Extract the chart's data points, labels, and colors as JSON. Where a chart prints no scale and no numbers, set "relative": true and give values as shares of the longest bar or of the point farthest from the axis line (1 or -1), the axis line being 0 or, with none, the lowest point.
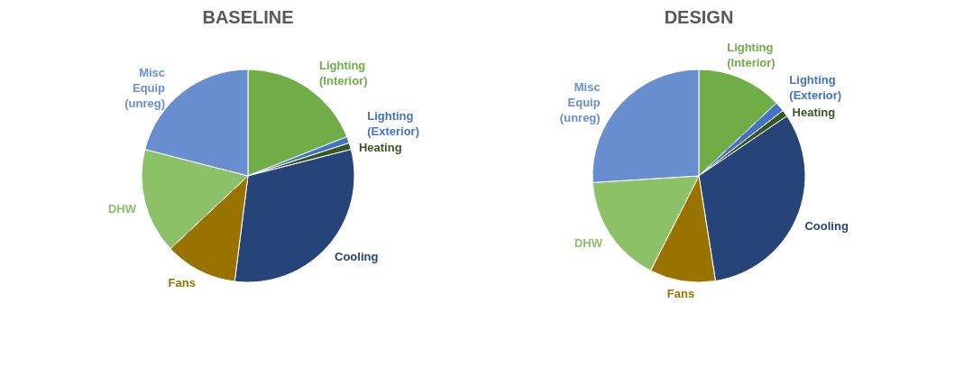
{
  "chart_data": [
    {
      "type": "pie",
      "title": "BASELINE",
      "relative": true,
      "categories": [
        "Lighting (Interior)",
        "Lighting (Exterior)",
        "Heating",
        "Cooling",
        "Fans",
        "DHW",
        "Misc Equip (unreg)"
      ],
      "values": [
        19,
        1,
        1,
        31,
        11,
        16,
        21
      ],
      "colors": [
        "#70ad47",
        "#4472c4",
        "#375623",
        "#264478",
        "#997300",
        "#8cc168",
        "#698ed0"
      ]
    },
    {
      "type": "pie",
      "title": "DESIGN",
      "relative": true,
      "categories": [
        "Lighting (Interior)",
        "Lighting (Exterior)",
        "Heating",
        "Cooling",
        "Fans",
        "DHW",
        "Misc Equip (unreg)"
      ],
      "values": [
        13,
        1.5,
        1,
        32,
        10,
        16.5,
        26
      ],
      "colors": [
        "#70ad47",
        "#4472c4",
        "#375623",
        "#264478",
        "#997300",
        "#8cc168",
        "#698ed0"
      ]
    }
  ]
}
